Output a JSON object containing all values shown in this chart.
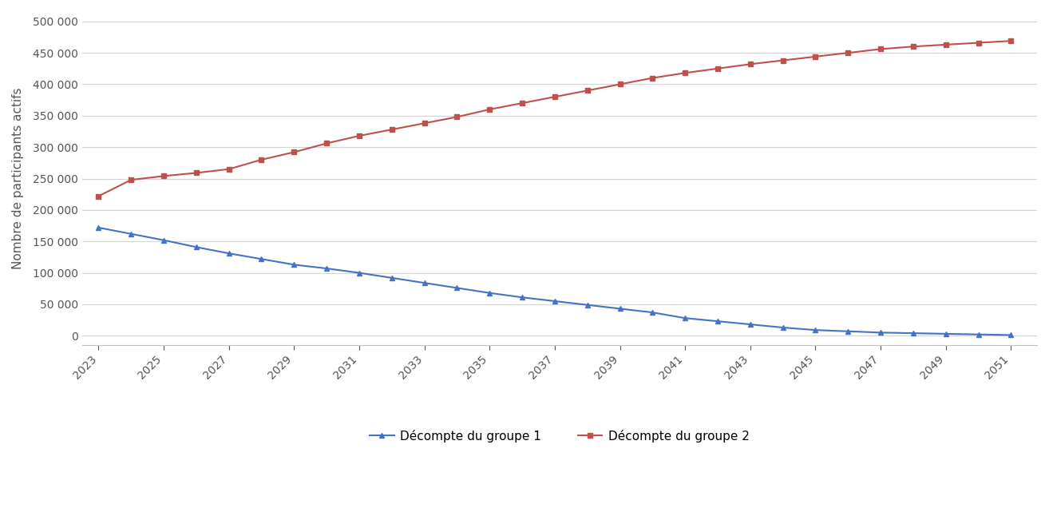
{
  "years": [
    2023,
    2024,
    2025,
    2026,
    2027,
    2028,
    2029,
    2030,
    2031,
    2032,
    2033,
    2034,
    2035,
    2036,
    2037,
    2038,
    2039,
    2040,
    2041,
    2042,
    2043,
    2044,
    2045,
    2046,
    2047,
    2048,
    2049,
    2050,
    2051
  ],
  "group1": [
    172000,
    162000,
    152000,
    141000,
    131000,
    122000,
    113000,
    107000,
    100000,
    92000,
    84000,
    76000,
    68000,
    61000,
    55000,
    49000,
    43000,
    37000,
    28000,
    23000,
    18000,
    13000,
    9000,
    7000,
    5000,
    4000,
    3000,
    2000,
    1000
  ],
  "group2": [
    222000,
    248000,
    254000,
    259000,
    265000,
    280000,
    292000,
    306000,
    318000,
    328000,
    338000,
    348000,
    360000,
    370000,
    380000,
    390000,
    400000,
    410000,
    418000,
    425000,
    432000,
    438000,
    444000,
    450000,
    456000,
    460000,
    463000,
    466000,
    469000
  ],
  "group1_color": "#4472C4",
  "group2_color": "#C0504D",
  "group1_label": "Décompte du groupe 1",
  "group2_label": "Décompte du groupe 2",
  "ylabel": "Nombre de participants actifs",
  "ylim": [
    -15000,
    515000
  ],
  "yticks": [
    0,
    50000,
    100000,
    150000,
    200000,
    250000,
    300000,
    350000,
    400000,
    450000,
    500000
  ],
  "xticks": [
    2023,
    2025,
    2027,
    2029,
    2031,
    2033,
    2035,
    2037,
    2039,
    2041,
    2043,
    2045,
    2047,
    2049,
    2051
  ],
  "background_color": "#ffffff",
  "grid_color": "#d3d3d3",
  "spine_color": "#c0c0c0"
}
